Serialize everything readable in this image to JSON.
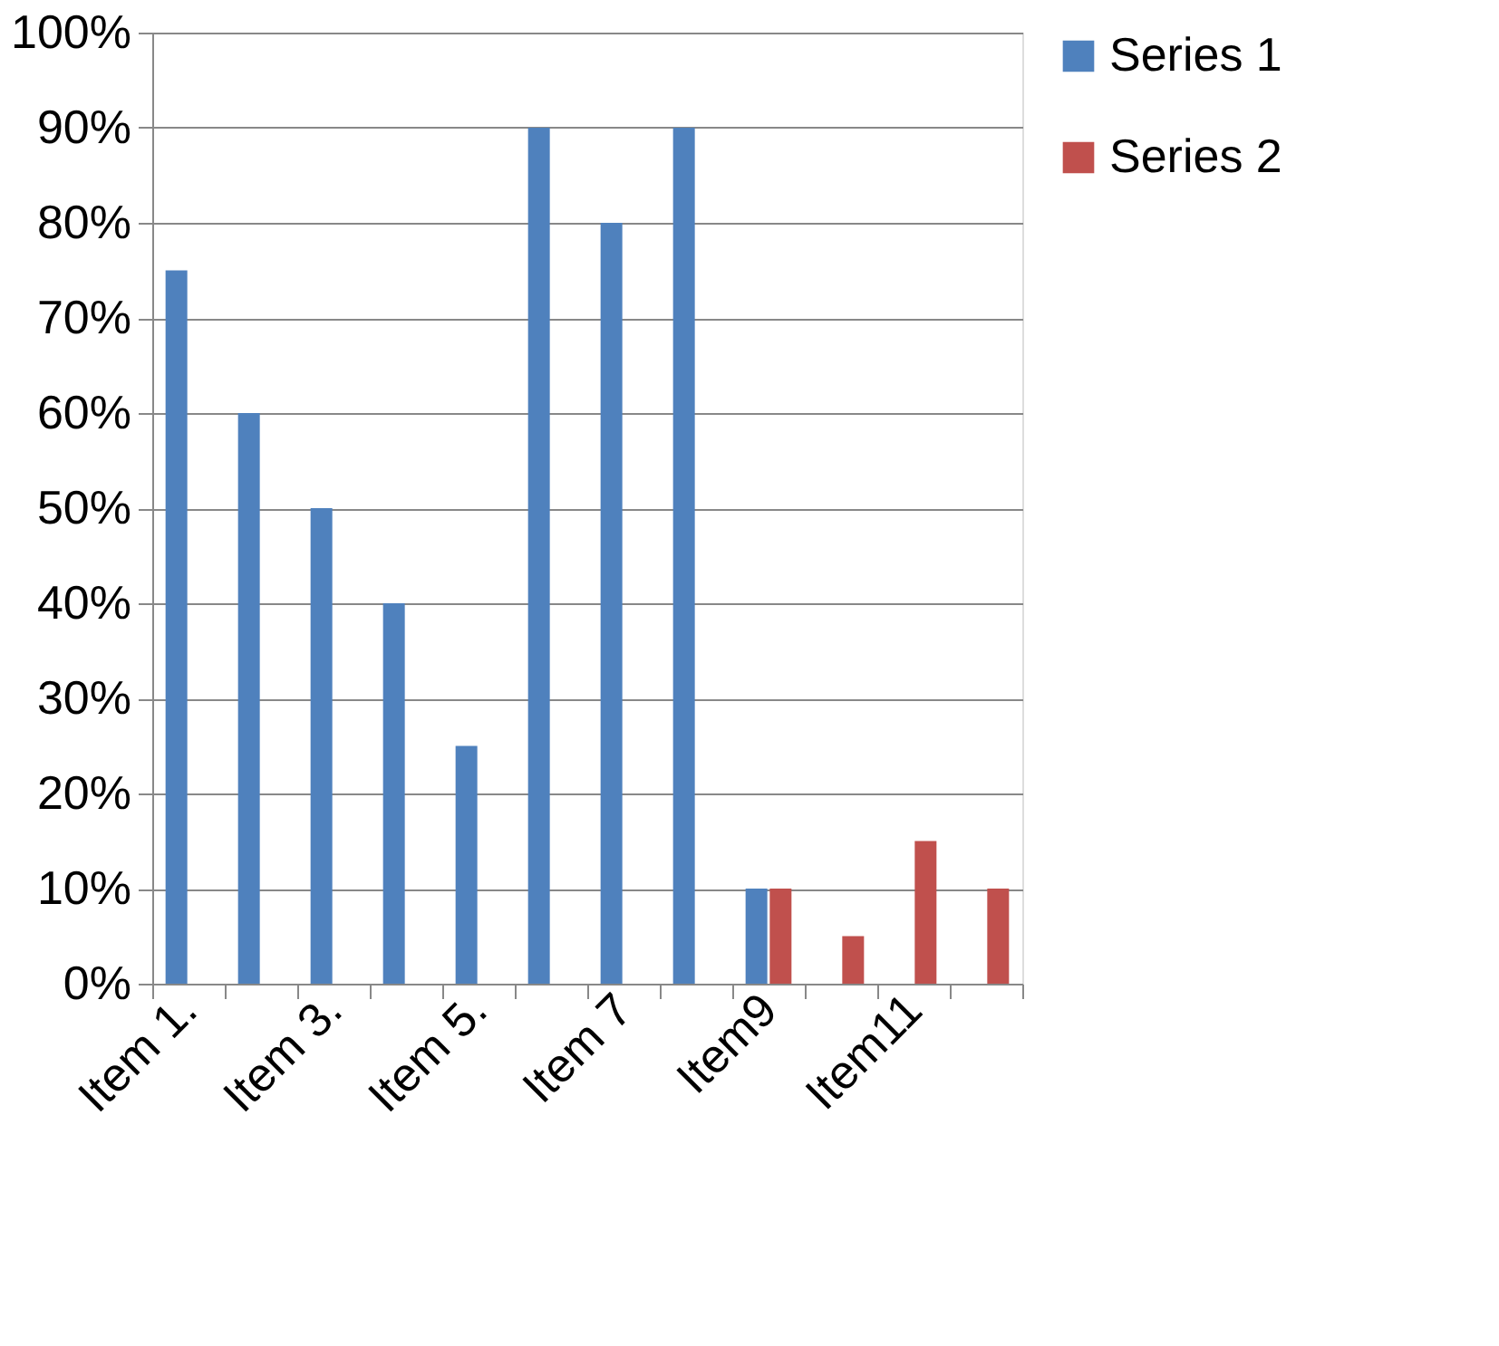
{
  "chart_data": {
    "type": "bar",
    "categories": [
      "Item 1.",
      null,
      "Item 3.",
      null,
      "Item 5.",
      null,
      "Item 7",
      null,
      "Item9",
      null,
      "Item11",
      null
    ],
    "series": [
      {
        "name": "Series 1",
        "color": "#4f81bd",
        "values": [
          75,
          60,
          50,
          40,
          25,
          90,
          80,
          90,
          10,
          null,
          null,
          null
        ]
      },
      {
        "name": "Series 2",
        "color": "#c0504d",
        "values": [
          null,
          null,
          null,
          null,
          null,
          null,
          null,
          null,
          10,
          5,
          15,
          10
        ]
      }
    ],
    "ylim": [
      0,
      100
    ],
    "yticks": [
      {
        "value": 0,
        "label": "0%"
      },
      {
        "value": 10,
        "label": "10%"
      },
      {
        "value": 20,
        "label": "20%"
      },
      {
        "value": 30,
        "label": "30%"
      },
      {
        "value": 40,
        "label": "40%"
      },
      {
        "value": 50,
        "label": "50%"
      },
      {
        "value": 60,
        "label": "60%"
      },
      {
        "value": 70,
        "label": "70%"
      },
      {
        "value": 80,
        "label": "80%"
      },
      {
        "value": 90,
        "label": "90%"
      },
      {
        "value": 100,
        "label": "100%"
      }
    ],
    "grid": "y",
    "legend": "right"
  }
}
